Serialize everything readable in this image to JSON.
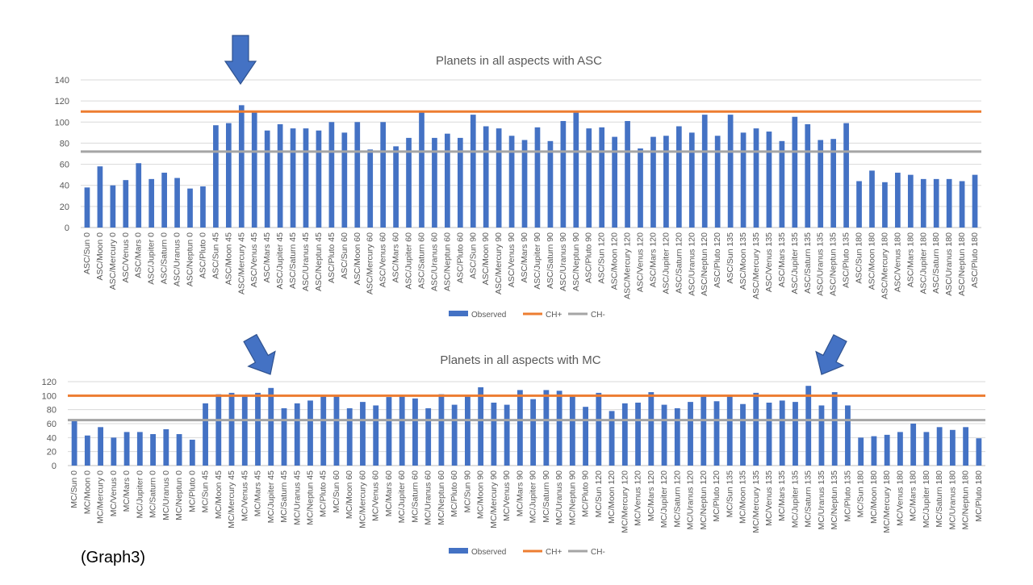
{
  "caption": "(Graph3)",
  "colors": {
    "observed": "#4472C4",
    "ch_plus": "#ED7D31",
    "ch_minus": "#A5A5A5",
    "arrow": "#4472C4",
    "arrow_stroke": "#2F528F",
    "grid": "#D9D9D9",
    "text": "#595959"
  },
  "chart_data": [
    {
      "type": "bar",
      "title": "Planets in all aspects with ASC",
      "ylim": [
        0,
        140
      ],
      "yticks": [
        0,
        20,
        40,
        60,
        80,
        100,
        120,
        140
      ],
      "grid": true,
      "legend_position": "bottom",
      "categories": [
        "ASC/Sun 0",
        "ASC/Moon 0",
        "ASC/Mercury 0",
        "ASC/Venus 0",
        "ASC/Mars 0",
        "ASC/Jupiter 0",
        "ASC/Saturn 0",
        "ASC/Uranus 0",
        "ASC/Neptun 0",
        "ASC/Pluto 0",
        "ASC/Sun 45",
        "ASC/Moon 45",
        "ASC/Mercury 45",
        "ASC/Venus 45",
        "ASC/Mars 45",
        "ASC/Jupiter 45",
        "ASC/Saturn 45",
        "ASC/Uranus 45",
        "ASC/Neptun 45",
        "ASC/Pluto 45",
        "ASC/Sun 60",
        "ASC/Moon 60",
        "ASC/Mercury 60",
        "ASC/Venus 60",
        "ASC/Mars 60",
        "ASC/Jupiter 60",
        "ASC/Saturn 60",
        "ASC/Uranus 60",
        "ASC/Neptun 60",
        "ASC/Pluto 60",
        "ASC/Sun 90",
        "ASC/Moon 90",
        "ASC/Mercury 90",
        "ASC/Venus 90",
        "ASC/Mars 90",
        "ASC/Jupiter 90",
        "ASC/Saturn 90",
        "ASC/Uranus 90",
        "ASC/Neptun 90",
        "ASC/Pluto 90",
        "ASC/Sun 120",
        "ASC/Moon 120",
        "ASC/Mercury 120",
        "ASC/Venus 120",
        "ASC/Mars 120",
        "ASC/Jupiter 120",
        "ASC/Saturn 120",
        "ASC/Uranus 120",
        "ASC/Neptun 120",
        "ASC/Pluto 120",
        "ASC/Sun 135",
        "ASC/Moon 135",
        "ASC/Mercury 135",
        "ASC/Venus 135",
        "ASC/Mars 135",
        "ASC/Jupiter 135",
        "ASC/Saturn 135",
        "ASC/Uranus 135",
        "ASC/Neptun 135",
        "ASC/Pluto 135",
        "ASC/Sun 180",
        "ASC/Moon 180",
        "ASC/Mercury 180",
        "ASC/Venus 180",
        "ASC/Mars 180",
        "ASC/Jupiter 180",
        "ASC/Saturn 180",
        "ASC/Uranus 180",
        "ASC/Neptun 180",
        "ASC/Pluto 180"
      ],
      "series": [
        {
          "name": "Observed",
          "kind": "bar",
          "values": [
            38,
            58,
            40,
            45,
            61,
            46,
            52,
            47,
            37,
            39,
            97,
            99,
            116,
            110,
            92,
            98,
            94,
            94,
            92,
            100,
            90,
            100,
            74,
            100,
            77,
            85,
            109,
            85,
            89,
            85,
            107,
            96,
            94,
            87,
            83,
            95,
            82,
            101,
            109,
            94,
            95,
            86,
            101,
            75,
            86,
            87,
            96,
            90,
            107,
            87,
            107,
            90,
            94,
            91,
            82,
            105,
            98,
            83,
            84,
            99,
            44,
            54,
            43,
            52,
            50,
            46,
            46,
            46,
            44,
            50
          ]
        },
        {
          "name": "CH+",
          "kind": "line",
          "value": 110
        },
        {
          "name": "CH-",
          "kind": "line",
          "value": 72
        }
      ],
      "arrows_at": [
        "ASC/Mercury 45"
      ]
    },
    {
      "type": "bar",
      "title": "Planets in all aspects with MC",
      "ylim": [
        0,
        120
      ],
      "yticks": [
        0,
        20,
        40,
        60,
        80,
        100,
        120
      ],
      "grid": true,
      "legend_position": "bottom",
      "categories": [
        "MC/Sun 0",
        "MC/Moon 0",
        "MC/Mercury 0",
        "MC/Venus 0",
        "MC/Mars 0",
        "MC/Jupiter 0",
        "MC/Saturn 0",
        "MC/Uranus 0",
        "MC/Neptun 0",
        "MC/Pluto 0",
        "MC/Sun 45",
        "MC/Moon 45",
        "MC/Mercury 45",
        "MC/Venus 45",
        "MC/Mars 45",
        "MC/Jupiter 45",
        "MC/Saturn 45",
        "MC/Uranus 45",
        "MC/Neptun 45",
        "MC/Pluto 45",
        "MC/Sun 60",
        "MC/Moon 60",
        "MC/Mercury 60",
        "MC/Venus 60",
        "MC/Mars 60",
        "MC/Jupiter 60",
        "MC/Saturn 60",
        "MC/Uranus 60",
        "MC/Neptun 60",
        "MC/Pluto 60",
        "MC/Sun 90",
        "MC/Moon 90",
        "MC/Mercury 90",
        "MC/Venus 90",
        "MC/Mars 90",
        "MC/Jupiter 90",
        "MC/Saturn 90",
        "MC/Uranus 90",
        "MC/Neptun 90",
        "MC/Pluto 90",
        "MC/Sun 120",
        "MC/Moon 120",
        "MC/Mercury 120",
        "MC/Venus 120",
        "MC/Mars 120",
        "MC/Jupiter 120",
        "MC/Saturn 120",
        "MC/Uranus 120",
        "MC/Neptun 120",
        "MC/Pluto 120",
        "MC/Sun 135",
        "MC/Moon 135",
        "MC/Mercury 135",
        "MC/Venus 135",
        "MC/Mars 135",
        "MC/Jupiter 135",
        "MC/Saturn 135",
        "MC/Uranus 135",
        "MC/Neptun 135",
        "MC/Pluto 135",
        "MC/Sun 180",
        "MC/Moon 180",
        "MC/Mercury 180",
        "MC/Venus 180",
        "MC/Mars 180",
        "MC/Jupiter 180",
        "MC/Saturn 180",
        "MC/Uranus 180",
        "MC/Neptun 180",
        "MC/Pluto 180"
      ],
      "series": [
        {
          "name": "Observed",
          "kind": "bar",
          "values": [
            64,
            43,
            55,
            40,
            48,
            48,
            45,
            52,
            45,
            37,
            89,
            102,
            104,
            100,
            104,
            111,
            82,
            89,
            93,
            100,
            100,
            82,
            91,
            86,
            98,
            100,
            96,
            82,
            102,
            87,
            100,
            112,
            90,
            87,
            108,
            95,
            108,
            107,
            100,
            84,
            104,
            78,
            89,
            90,
            105,
            87,
            82,
            91,
            100,
            92,
            99,
            88,
            104,
            90,
            93,
            91,
            114,
            86,
            105,
            86,
            40,
            42,
            44,
            48,
            60,
            48,
            55,
            51,
            55,
            39
          ]
        },
        {
          "name": "CH+",
          "kind": "line",
          "value": 100
        },
        {
          "name": "CH-",
          "kind": "line",
          "value": 65
        }
      ],
      "arrows_at": [
        "MC/Jupiter 45",
        "MC/Saturn 135"
      ]
    }
  ]
}
